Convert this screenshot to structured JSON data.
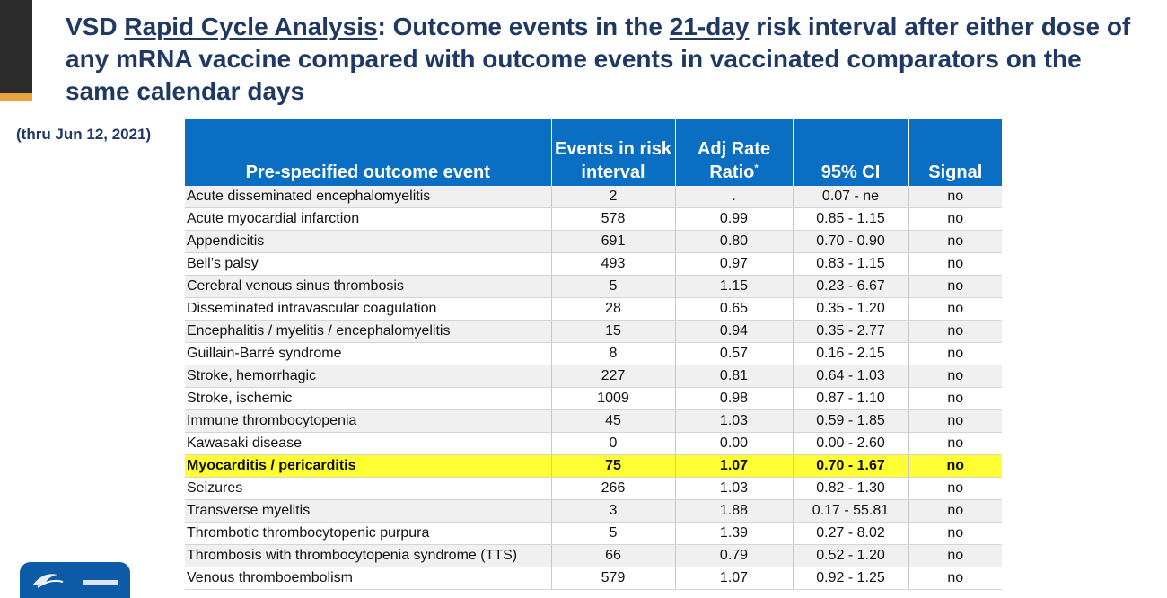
{
  "slide": {
    "title_parts": [
      "VSD ",
      "Rapid Cycle Analysis",
      ": Outcome events in the ",
      "21-day",
      " risk interval after either dose of any mRNA vaccine compared with outcome events in vaccinated comparators on the same calendar days"
    ],
    "subnote": "(thru Jun 12, 2021)"
  },
  "table": {
    "headers": {
      "outcome": "Pre-specified outcome event",
      "events": "Events in risk interval",
      "rr": "Adj Rate Ratio",
      "rr_mark": "*",
      "ci": "95% CI",
      "signal": "Signal"
    },
    "rows": [
      {
        "outcome": "Acute disseminated encephalomyelitis",
        "events": "2",
        "rr": ".",
        "ci": "0.07 - ne",
        "signal": "no"
      },
      {
        "outcome": "Acute myocardial infarction",
        "events": "578",
        "rr": "0.99",
        "ci": "0.85 - 1.15",
        "signal": "no"
      },
      {
        "outcome": "Appendicitis",
        "events": "691",
        "rr": "0.80",
        "ci": "0.70 - 0.90",
        "signal": "no"
      },
      {
        "outcome": "Bell’s palsy",
        "events": "493",
        "rr": "0.97",
        "ci": "0.83 - 1.15",
        "signal": "no"
      },
      {
        "outcome": "Cerebral venous sinus thrombosis",
        "events": "5",
        "rr": "1.15",
        "ci": "0.23 - 6.67",
        "signal": "no"
      },
      {
        "outcome": "Disseminated intravascular coagulation",
        "events": "28",
        "rr": "0.65",
        "ci": "0.35 - 1.20",
        "signal": "no"
      },
      {
        "outcome": "Encephalitis / myelitis / encephalomyelitis",
        "events": "15",
        "rr": "0.94",
        "ci": "0.35 - 2.77",
        "signal": "no"
      },
      {
        "outcome": "Guillain-Barré syndrome",
        "events": "8",
        "rr": "0.57",
        "ci": "0.16 - 2.15",
        "signal": "no"
      },
      {
        "outcome": "Stroke, hemorrhagic",
        "events": "227",
        "rr": "0.81",
        "ci": "0.64 - 1.03",
        "signal": "no"
      },
      {
        "outcome": "Stroke, ischemic",
        "events": "1009",
        "rr": "0.98",
        "ci": "0.87 - 1.10",
        "signal": "no"
      },
      {
        "outcome": "Immune thrombocytopenia",
        "events": "45",
        "rr": "1.03",
        "ci": "0.59 - 1.85",
        "signal": "no"
      },
      {
        "outcome": "Kawasaki disease",
        "events": "0",
        "rr": "0.00",
        "ci": "0.00 - 2.60",
        "signal": "no"
      },
      {
        "outcome": "Myocarditis / pericarditis",
        "events": "75",
        "rr": "1.07",
        "ci": "0.70 - 1.67",
        "signal": "no",
        "highlight": true
      },
      {
        "outcome": "Seizures",
        "events": "266",
        "rr": "1.03",
        "ci": "0.82 - 1.30",
        "signal": "no"
      },
      {
        "outcome": "Transverse myelitis",
        "events": "3",
        "rr": "1.88",
        "ci": "0.17 - 55.81",
        "signal": "no"
      },
      {
        "outcome": "Thrombotic thrombocytopenic purpura",
        "events": "5",
        "rr": "1.39",
        "ci": "0.27 - 8.02",
        "signal": "no"
      },
      {
        "outcome": "Thrombosis with thrombocytopenia syndrome (TTS)",
        "events": "66",
        "rr": "0.79",
        "ci": "0.52 - 1.20",
        "signal": "no"
      },
      {
        "outcome": "Venous thromboembolism",
        "events": "579",
        "rr": "1.07",
        "ci": "0.92 - 1.25",
        "signal": "no"
      }
    ]
  },
  "colors": {
    "header_bg": "#0a6fc2",
    "title": "#1f3864",
    "highlight": "#ffff33",
    "accent_orange": "#e8a33d"
  },
  "icons": {
    "logo": "hhs-eagle-logo"
  }
}
